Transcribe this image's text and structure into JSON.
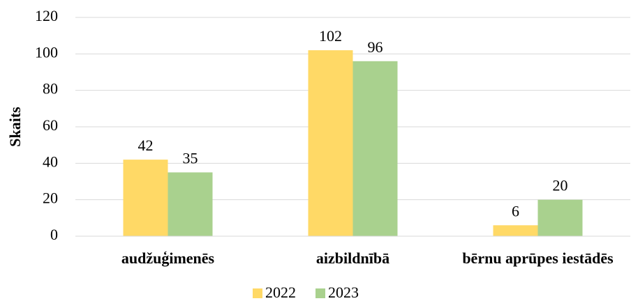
{
  "chart_data": {
    "type": "bar",
    "y_label": "Skaits",
    "categories": [
      "audžuģimenēs",
      "aizbildnībā",
      "bērnu aprūpes iestādēs"
    ],
    "series": [
      {
        "name": "2022",
        "color": "#ffd966",
        "values": [
          42,
          102,
          6
        ]
      },
      {
        "name": "2023",
        "color": "#a9d18e",
        "values": [
          35,
          96,
          20
        ]
      }
    ],
    "ylim": [
      0,
      120
    ],
    "yticks": [
      0,
      20,
      40,
      60,
      80,
      100,
      120
    ],
    "grid": true,
    "legend": "bottom"
  }
}
